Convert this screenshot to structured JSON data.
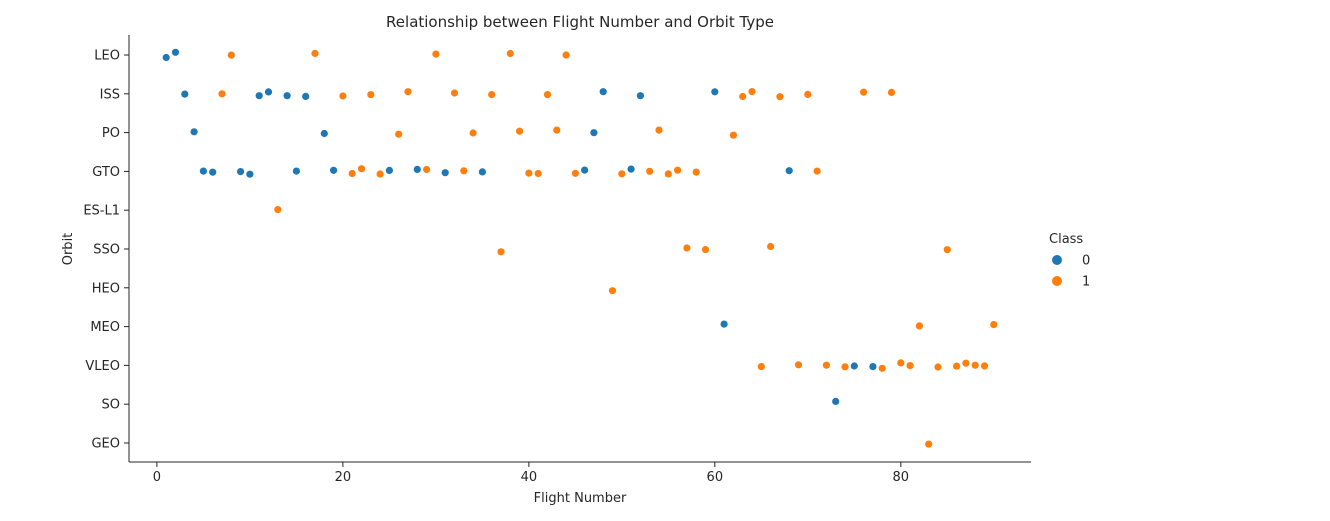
{
  "chart_data": {
    "type": "scatter",
    "title": "Relationship between Flight Number and Orbit Type",
    "xlabel": "Flight Number",
    "ylabel": "Orbit",
    "xlim": [
      -3,
      94
    ],
    "xticks": [
      0,
      20,
      40,
      60,
      80
    ],
    "categories": [
      "LEO",
      "ISS",
      "PO",
      "GTO",
      "ES-L1",
      "SSO",
      "HEO",
      "MEO",
      "VLEO",
      "SO",
      "GEO"
    ],
    "grid": false,
    "legend": {
      "title": "Class",
      "placement": "right",
      "entries": [
        {
          "label": "0",
          "color": "#1f77b4"
        },
        {
          "label": "1",
          "color": "#ff7f0e"
        }
      ]
    },
    "series": [
      {
        "name": "0",
        "color": "#1f77b4",
        "points": [
          [
            1,
            "LEO"
          ],
          [
            2,
            "LEO"
          ],
          [
            3,
            "ISS"
          ],
          [
            4,
            "PO"
          ],
          [
            5,
            "GTO"
          ],
          [
            6,
            "GTO"
          ],
          [
            9,
            "GTO"
          ],
          [
            10,
            "GTO"
          ],
          [
            11,
            "ISS"
          ],
          [
            12,
            "ISS"
          ],
          [
            14,
            "ISS"
          ],
          [
            15,
            "GTO"
          ],
          [
            16,
            "ISS"
          ],
          [
            18,
            "PO"
          ],
          [
            19,
            "GTO"
          ],
          [
            25,
            "GTO"
          ],
          [
            28,
            "GTO"
          ],
          [
            31,
            "GTO"
          ],
          [
            35,
            "GTO"
          ],
          [
            46,
            "GTO"
          ],
          [
            47,
            "PO"
          ],
          [
            48,
            "ISS"
          ],
          [
            51,
            "GTO"
          ],
          [
            52,
            "ISS"
          ],
          [
            60,
            "ISS"
          ],
          [
            61,
            "MEO"
          ],
          [
            68,
            "GTO"
          ],
          [
            73,
            "SO"
          ],
          [
            75,
            "VLEO"
          ],
          [
            77,
            "VLEO"
          ]
        ]
      },
      {
        "name": "1",
        "color": "#ff7f0e",
        "points": [
          [
            7,
            "ISS"
          ],
          [
            8,
            "LEO"
          ],
          [
            13,
            "ES-L1"
          ],
          [
            17,
            "LEO"
          ],
          [
            20,
            "ISS"
          ],
          [
            21,
            "GTO"
          ],
          [
            22,
            "GTO"
          ],
          [
            23,
            "ISS"
          ],
          [
            24,
            "GTO"
          ],
          [
            26,
            "PO"
          ],
          [
            27,
            "ISS"
          ],
          [
            29,
            "GTO"
          ],
          [
            30,
            "LEO"
          ],
          [
            32,
            "ISS"
          ],
          [
            33,
            "GTO"
          ],
          [
            34,
            "PO"
          ],
          [
            36,
            "ISS"
          ],
          [
            37,
            "SSO"
          ],
          [
            38,
            "LEO"
          ],
          [
            39,
            "PO"
          ],
          [
            40,
            "GTO"
          ],
          [
            41,
            "GTO"
          ],
          [
            42,
            "ISS"
          ],
          [
            43,
            "PO"
          ],
          [
            44,
            "LEO"
          ],
          [
            45,
            "GTO"
          ],
          [
            49,
            "HEO"
          ],
          [
            50,
            "GTO"
          ],
          [
            53,
            "GTO"
          ],
          [
            54,
            "PO"
          ],
          [
            55,
            "GTO"
          ],
          [
            56,
            "GTO"
          ],
          [
            57,
            "SSO"
          ],
          [
            58,
            "GTO"
          ],
          [
            59,
            "SSO"
          ],
          [
            62,
            "PO"
          ],
          [
            63,
            "ISS"
          ],
          [
            64,
            "ISS"
          ],
          [
            65,
            "VLEO"
          ],
          [
            66,
            "SSO"
          ],
          [
            67,
            "ISS"
          ],
          [
            69,
            "VLEO"
          ],
          [
            70,
            "ISS"
          ],
          [
            71,
            "GTO"
          ],
          [
            72,
            "VLEO"
          ],
          [
            74,
            "VLEO"
          ],
          [
            76,
            "ISS"
          ],
          [
            78,
            "VLEO"
          ],
          [
            79,
            "ISS"
          ],
          [
            80,
            "VLEO"
          ],
          [
            81,
            "VLEO"
          ],
          [
            82,
            "MEO"
          ],
          [
            83,
            "GEO"
          ],
          [
            84,
            "VLEO"
          ],
          [
            85,
            "SSO"
          ],
          [
            86,
            "VLEO"
          ],
          [
            87,
            "VLEO"
          ],
          [
            88,
            "VLEO"
          ],
          [
            89,
            "VLEO"
          ],
          [
            90,
            "MEO"
          ]
        ]
      }
    ]
  }
}
